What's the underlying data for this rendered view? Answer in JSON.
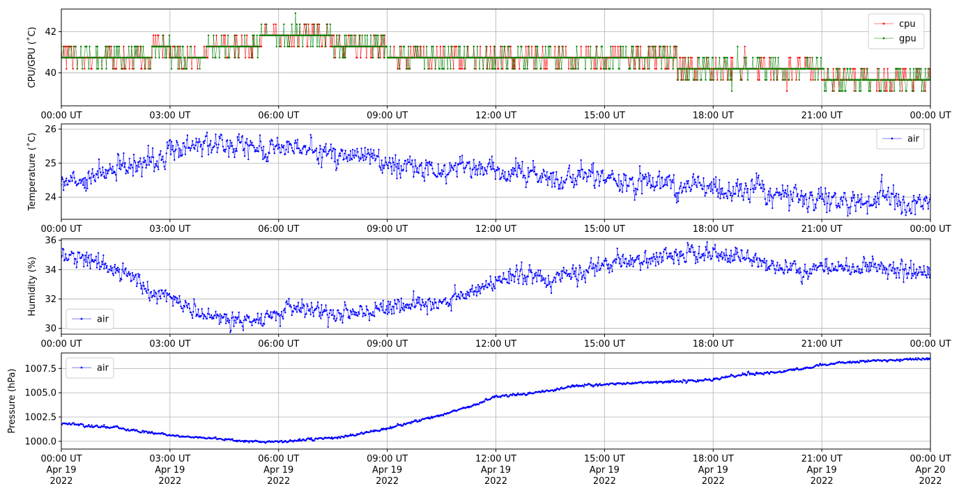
{
  "chart_data": [
    {
      "type": "line",
      "ylabel": "CPU/GPU (˚C)",
      "ylim": [
        38.4,
        43.1
      ],
      "yticks": [
        40,
        42
      ],
      "xticks": [
        "00:00 UT",
        "03:00 UT",
        "06:00 UT",
        "09:00 UT",
        "12:00 UT",
        "15:00 UT",
        "18:00 UT",
        "21:00 UT",
        "00:00 UT"
      ],
      "grid": true,
      "legend": "top-right",
      "series": [
        {
          "name": "cpu",
          "color": "#ff0000",
          "step_values": [
            40.74,
            40.74,
            40.74,
            40.74,
            40.74,
            41.28,
            40.74,
            40.74,
            41.28,
            41.28,
            41.28,
            41.82,
            41.82,
            41.82,
            41.82,
            41.28,
            41.28,
            41.28,
            40.74,
            40.74,
            40.74,
            40.74,
            40.74,
            40.74,
            40.74,
            40.74,
            40.74,
            40.74,
            40.74,
            40.74,
            40.74,
            40.74,
            40.74,
            40.74,
            40.2,
            40.2,
            40.2,
            40.2,
            40.2,
            40.2,
            40.2,
            40.2,
            39.66,
            39.66,
            39.66,
            39.66,
            39.66,
            39.66
          ],
          "noise_prob": 0.3
        },
        {
          "name": "gpu",
          "color": "#008000",
          "step_values": [
            40.74,
            40.74,
            40.74,
            40.74,
            40.74,
            41.28,
            40.74,
            40.74,
            41.28,
            41.28,
            41.28,
            41.82,
            41.82,
            41.82,
            41.82,
            41.28,
            41.28,
            41.28,
            40.74,
            40.74,
            40.74,
            40.74,
            40.74,
            40.74,
            40.74,
            40.74,
            40.74,
            40.74,
            40.74,
            40.74,
            40.74,
            40.74,
            40.74,
            40.74,
            40.2,
            40.2,
            40.2,
            40.2,
            40.2,
            40.2,
            40.2,
            40.2,
            39.66,
            39.66,
            39.66,
            39.66,
            39.66,
            39.66
          ],
          "noise_prob": 0.3
        }
      ]
    },
    {
      "type": "line",
      "ylabel": "Temperature (˚C)",
      "ylim": [
        23.35,
        26.15
      ],
      "yticks": [
        24,
        25,
        26
      ],
      "xticks": [
        "00:00 UT",
        "03:00 UT",
        "06:00 UT",
        "09:00 UT",
        "12:00 UT",
        "15:00 UT",
        "18:00 UT",
        "21:00 UT",
        "00:00 UT"
      ],
      "grid": true,
      "legend": "top-right",
      "series": [
        {
          "name": "air",
          "color": "#0000ff",
          "hourly_values": [
            24.35,
            24.55,
            24.7,
            24.8,
            24.95,
            25.05,
            25.35,
            25.5,
            25.55,
            25.65,
            25.45,
            25.35,
            25.4,
            25.45,
            25.4,
            25.3,
            25.2,
            25.1,
            25.0,
            24.95,
            24.85,
            24.8,
            24.85,
            24.8,
            24.8,
            24.7,
            24.65,
            24.6,
            24.55,
            24.6,
            24.55,
            24.5,
            24.5,
            24.45,
            24.3,
            24.3,
            24.25,
            24.2,
            24.3,
            24.1,
            24.05,
            24.0,
            23.95,
            23.85,
            23.85,
            23.95,
            23.9,
            23.85,
            23.85
          ],
          "noise": 0.16
        }
      ]
    },
    {
      "type": "line",
      "ylabel": "Humidity (%)",
      "ylim": [
        29.6,
        36.1
      ],
      "yticks": [
        30,
        32,
        34,
        36
      ],
      "xticks": [
        "00:00 UT",
        "03:00 UT",
        "06:00 UT",
        "09:00 UT",
        "12:00 UT",
        "15:00 UT",
        "18:00 UT",
        "21:00 UT",
        "00:00 UT"
      ],
      "grid": true,
      "legend": "bottom-left",
      "series": [
        {
          "name": "air",
          "color": "#0000ff",
          "hourly_values": [
            35.0,
            34.8,
            34.4,
            34.0,
            33.5,
            32.3,
            32.1,
            31.6,
            31.0,
            30.8,
            30.5,
            30.4,
            31.0,
            31.4,
            31.3,
            30.8,
            30.9,
            31.0,
            31.4,
            31.5,
            31.7,
            31.9,
            32.2,
            32.5,
            33.2,
            33.5,
            33.6,
            33.2,
            33.5,
            33.9,
            34.3,
            34.6,
            34.8,
            34.9,
            35.0,
            35.1,
            35.2,
            35.0,
            34.7,
            34.5,
            34.2,
            34.0,
            34.0,
            34.1,
            34.1,
            34.2,
            34.0,
            34.0,
            33.9
          ],
          "noise": 0.3
        }
      ]
    },
    {
      "type": "line",
      "ylabel": "Pressure (hPa)",
      "ylim": [
        999.2,
        1009.1
      ],
      "yticks": [
        1000.0,
        1002.5,
        1005.0,
        1007.5
      ],
      "ytick_labels": [
        "1000.0",
        "1002.5",
        "1005.0",
        "1007.5"
      ],
      "xticks": [
        "00:00 UT",
        "03:00 UT",
        "06:00 UT",
        "09:00 UT",
        "12:00 UT",
        "15:00 UT",
        "18:00 UT",
        "21:00 UT",
        "00:00 UT"
      ],
      "xtick_dates": [
        "Apr 19",
        "Apr 19",
        "Apr 19",
        "Apr 19",
        "Apr 19",
        "Apr 19",
        "Apr 19",
        "Apr 19",
        "Apr 20"
      ],
      "xtick_years": [
        "2022",
        "2022",
        "2022",
        "2022",
        "2022",
        "2022",
        "2022",
        "2022",
        "2022"
      ],
      "grid": true,
      "legend": "top-left",
      "series": [
        {
          "name": "air",
          "color": "#0000ff",
          "hourly_values": [
            1001.8,
            1001.7,
            1001.5,
            1001.4,
            1001.1,
            1000.9,
            1000.6,
            1000.45,
            1000.35,
            1000.2,
            1000.05,
            999.95,
            999.95,
            1000.1,
            1000.25,
            1000.35,
            1000.6,
            1000.95,
            1001.3,
            1001.8,
            1002.25,
            1002.7,
            1003.3,
            1003.85,
            1004.6,
            1004.8,
            1004.95,
            1005.2,
            1005.6,
            1005.8,
            1005.85,
            1005.95,
            1006.05,
            1006.1,
            1006.15,
            1006.25,
            1006.35,
            1006.7,
            1006.95,
            1007.05,
            1007.25,
            1007.5,
            1007.85,
            1008.05,
            1008.2,
            1008.3,
            1008.35,
            1008.45,
            1008.5
          ],
          "noise": 0.06
        }
      ]
    }
  ]
}
